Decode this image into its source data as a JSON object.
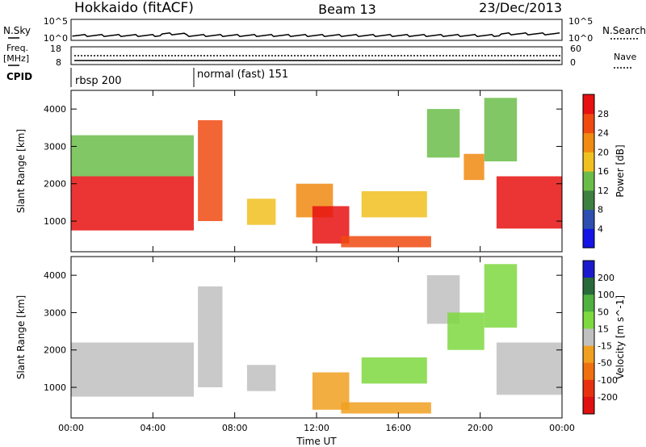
{
  "header": {
    "station": "Hokkaido (fitACF)",
    "beam": "Beam 13",
    "date": "23/Dec/2013"
  },
  "top_panels": {
    "nsky_label": "N.Sky",
    "nsky_ticks": [
      "10^5",
      "10^0"
    ],
    "nsearch_label": "N.Search",
    "nsearch_ticks": [
      "10^5",
      "10^0"
    ],
    "freq_label": "Freq.",
    "freq_unit": "[MHz]",
    "freq_ticks": [
      "18",
      "8"
    ],
    "nave_label": "Nave",
    "nave_ticks": [
      "60",
      "0"
    ],
    "cpid_label": "CPID",
    "cpid_segments": [
      {
        "label": "rbsp 200",
        "start": "00:00"
      },
      {
        "label": "normal (fast) 151",
        "start": "06:00"
      }
    ]
  },
  "chart_data": [
    {
      "type": "heatmap",
      "title": "",
      "quantity": "Power",
      "ylabel": "Slant Range [km]",
      "ylim": [
        180,
        4500
      ],
      "y_ticks": [
        1000,
        2000,
        3000,
        4000
      ],
      "x_ticks": [
        "00:00",
        "04:00",
        "08:00",
        "12:00",
        "16:00",
        "20:00",
        "00:00"
      ],
      "xlim_hours": [
        0,
        24
      ],
      "colorbar": {
        "label": "Power [dB]",
        "ticks": [
          4,
          8,
          12,
          16,
          20,
          24,
          28
        ],
        "colors": [
          "#1414e6",
          "#2e4fb0",
          "#3e8040",
          "#6bbd4a",
          "#f0c020",
          "#f08a10",
          "#f04a10",
          "#e81010"
        ]
      },
      "regions": [
        {
          "t0": 0.0,
          "t1": 6.0,
          "r0": 750,
          "r1": 2200,
          "level": 28
        },
        {
          "t0": 0.0,
          "t1": 6.0,
          "r0": 2200,
          "r1": 3300,
          "level": 14
        },
        {
          "t0": 6.2,
          "t1": 7.4,
          "r0": 1000,
          "r1": 3700,
          "level": 24
        },
        {
          "t0": 8.6,
          "t1": 10.0,
          "r0": 900,
          "r1": 1600,
          "level": 16
        },
        {
          "t0": 11.0,
          "t1": 12.8,
          "r0": 1100,
          "r1": 2000,
          "level": 20
        },
        {
          "t0": 11.8,
          "t1": 13.6,
          "r0": 400,
          "r1": 1400,
          "level": 28
        },
        {
          "t0": 13.2,
          "t1": 17.6,
          "r0": 300,
          "r1": 600,
          "level": 26
        },
        {
          "t0": 14.2,
          "t1": 17.4,
          "r0": 1100,
          "r1": 1800,
          "level": 18
        },
        {
          "t0": 17.4,
          "t1": 19.0,
          "r0": 2700,
          "r1": 4000,
          "level": 12
        },
        {
          "t0": 19.2,
          "t1": 20.2,
          "r0": 2100,
          "r1": 2800,
          "level": 20
        },
        {
          "t0": 20.8,
          "t1": 24.0,
          "r0": 800,
          "r1": 2200,
          "level": 28
        },
        {
          "t0": 20.2,
          "t1": 21.8,
          "r0": 2600,
          "r1": 4300,
          "level": 14
        }
      ]
    },
    {
      "type": "heatmap",
      "title": "",
      "quantity": "Velocity",
      "ylabel": "Slant Range [km]",
      "ylim": [
        180,
        4500
      ],
      "y_ticks": [
        1000,
        2000,
        3000,
        4000
      ],
      "x_ticks": [
        "00:00",
        "04:00",
        "08:00",
        "12:00",
        "16:00",
        "20:00",
        "00:00"
      ],
      "xlabel": "Time UT",
      "xlim_hours": [
        0,
        24
      ],
      "colorbar": {
        "label": "Velocity [m s^-1]",
        "ticks": [
          200,
          100,
          50,
          15,
          -15,
          -50,
          -100,
          -200
        ],
        "colors": [
          "#1a1acc",
          "#2a6a3a",
          "#50b040",
          "#7ed840",
          "#c0c0c0",
          "#f0a020",
          "#f07010",
          "#e83010",
          "#e01010"
        ]
      },
      "regions": [
        {
          "t0": 0.0,
          "t1": 6.0,
          "r0": 750,
          "r1": 2200,
          "level": 0
        },
        {
          "t0": 6.2,
          "t1": 7.4,
          "r0": 1000,
          "r1": 3700,
          "level": 0
        },
        {
          "t0": 8.6,
          "t1": 10.0,
          "r0": 900,
          "r1": 1600,
          "level": 0
        },
        {
          "t0": 11.8,
          "t1": 13.6,
          "r0": 400,
          "r1": 1400,
          "level": -40
        },
        {
          "t0": 13.2,
          "t1": 17.6,
          "r0": 300,
          "r1": 600,
          "level": -40
        },
        {
          "t0": 14.2,
          "t1": 17.4,
          "r0": 1100,
          "r1": 1800,
          "level": 40
        },
        {
          "t0": 17.4,
          "t1": 19.0,
          "r0": 2700,
          "r1": 4000,
          "level": 0
        },
        {
          "t0": 18.4,
          "t1": 20.2,
          "r0": 2000,
          "r1": 3000,
          "level": 40
        },
        {
          "t0": 20.8,
          "t1": 24.0,
          "r0": 800,
          "r1": 2200,
          "level": 0
        },
        {
          "t0": 20.2,
          "t1": 21.8,
          "r0": 2600,
          "r1": 4300,
          "level": 40
        }
      ]
    }
  ]
}
